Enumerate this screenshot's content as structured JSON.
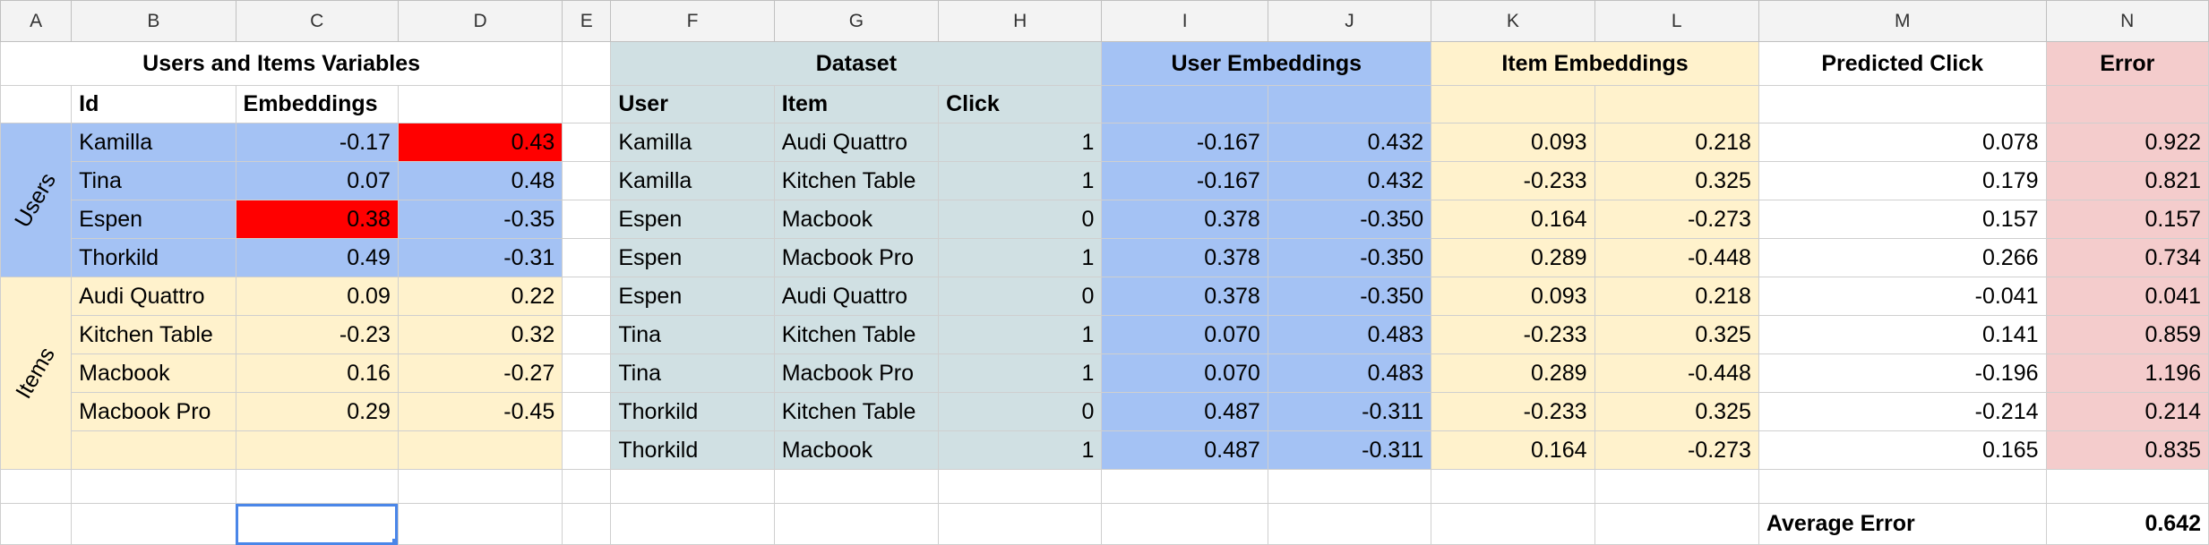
{
  "columns": [
    "A",
    "B",
    "C",
    "D",
    "E",
    "F",
    "G",
    "H",
    "I",
    "J",
    "K",
    "L",
    "M",
    "N"
  ],
  "left_title": "Users and Items Variables",
  "left_headers": {
    "id": "Id",
    "embeddings": "Embeddings"
  },
  "group_labels": {
    "users": "Users",
    "items": "Items"
  },
  "users": [
    {
      "id": "Kamilla",
      "e1": "-0.17",
      "e2": "0.43"
    },
    {
      "id": "Tina",
      "e1": "0.07",
      "e2": "0.48"
    },
    {
      "id": "Espen",
      "e1": "0.38",
      "e2": "-0.35"
    },
    {
      "id": "Thorkild",
      "e1": "0.49",
      "e2": "-0.31"
    }
  ],
  "items": [
    {
      "id": "Audi Quattro",
      "e1": "0.09",
      "e2": "0.22"
    },
    {
      "id": "Kitchen Table",
      "e1": "-0.23",
      "e2": "0.32"
    },
    {
      "id": "Macbook",
      "e1": "0.16",
      "e2": "-0.27"
    },
    {
      "id": "Macbook Pro",
      "e1": "0.29",
      "e2": "-0.45"
    }
  ],
  "section_titles": {
    "dataset": "Dataset",
    "user_embeddings": "User Embeddings",
    "item_embeddings": "Item Embeddings",
    "predicted_click": "Predicted Click",
    "error": "Error"
  },
  "dataset_headers": {
    "user": "User",
    "item": "Item",
    "click": "Click"
  },
  "dataset": [
    {
      "user": "Kamilla",
      "item": "Audi Quattro",
      "click": "1",
      "u1": "-0.167",
      "u2": "0.432",
      "i1": "0.093",
      "i2": "0.218",
      "pred": "0.078",
      "err": "0.922"
    },
    {
      "user": "Kamilla",
      "item": "Kitchen Table",
      "click": "1",
      "u1": "-0.167",
      "u2": "0.432",
      "i1": "-0.233",
      "i2": "0.325",
      "pred": "0.179",
      "err": "0.821"
    },
    {
      "user": "Espen",
      "item": "Macbook",
      "click": "0",
      "u1": "0.378",
      "u2": "-0.350",
      "i1": "0.164",
      "i2": "-0.273",
      "pred": "0.157",
      "err": "0.157"
    },
    {
      "user": "Espen",
      "item": "Macbook Pro",
      "click": "1",
      "u1": "0.378",
      "u2": "-0.350",
      "i1": "0.289",
      "i2": "-0.448",
      "pred": "0.266",
      "err": "0.734"
    },
    {
      "user": "Espen",
      "item": "Audi Quattro",
      "click": "0",
      "u1": "0.378",
      "u2": "-0.350",
      "i1": "0.093",
      "i2": "0.218",
      "pred": "-0.041",
      "err": "0.041"
    },
    {
      "user": "Tina",
      "item": "Kitchen Table",
      "click": "1",
      "u1": "0.070",
      "u2": "0.483",
      "i1": "-0.233",
      "i2": "0.325",
      "pred": "0.141",
      "err": "0.859"
    },
    {
      "user": "Tina",
      "item": "Macbook Pro",
      "click": "1",
      "u1": "0.070",
      "u2": "0.483",
      "i1": "0.289",
      "i2": "-0.448",
      "pred": "-0.196",
      "err": "1.196"
    },
    {
      "user": "Thorkild",
      "item": "Kitchen Table",
      "click": "0",
      "u1": "0.487",
      "u2": "-0.311",
      "i1": "-0.233",
      "i2": "0.325",
      "pred": "-0.214",
      "err": "0.214"
    },
    {
      "user": "Thorkild",
      "item": "Macbook",
      "click": "1",
      "u1": "0.487",
      "u2": "-0.311",
      "i1": "0.164",
      "i2": "-0.273",
      "pred": "0.165",
      "err": "0.835"
    }
  ],
  "average_error": {
    "label": "Average Error",
    "value": "0.642"
  },
  "colors": {
    "users": "#a4c2f4",
    "items": "#fff2cc",
    "dataset": "#d0e0e3",
    "error": "#f4cccc",
    "highlight": "#ff0000",
    "selection": "#4a86e8"
  }
}
